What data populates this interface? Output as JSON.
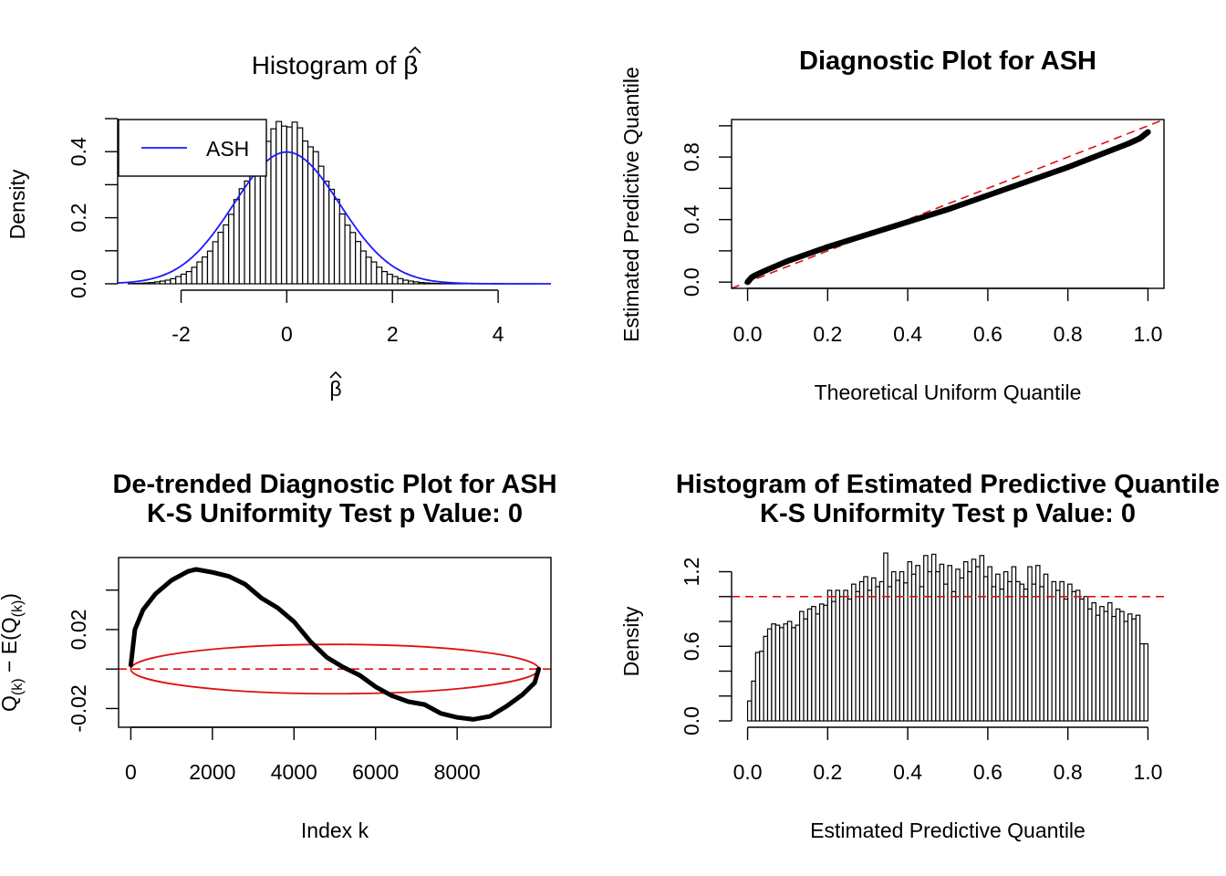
{
  "chart_data": [
    {
      "panel": "top-left",
      "type": "histogram",
      "title": "Histogram of β̂",
      "title_prefix": "Histogram of",
      "title_symbol": "β",
      "xlabel": "β",
      "ylabel": "Density",
      "xlim": [
        -3.2,
        5.0
      ],
      "ylim": [
        0,
        0.5
      ],
      "x_ticks": [
        "-2",
        "0",
        "2",
        "4"
      ],
      "x_tick_values": [
        -2,
        0,
        2,
        4
      ],
      "y_ticks": [
        "0.0",
        "0.2",
        "0.4"
      ],
      "y_tick_values": [
        0,
        0.2,
        0.4
      ],
      "bin_start": -3.0,
      "bin_width": 0.1,
      "curve": {
        "name": "ASH",
        "color": "#1a1aff",
        "mean": 0,
        "sd": 1
      },
      "legend": {
        "position": "top-left",
        "entries": [
          "ASH"
        ]
      }
    },
    {
      "panel": "top-right",
      "type": "scatter",
      "title": "Diagnostic Plot for ASH",
      "xlabel": "Theoretical Uniform Quantile",
      "ylabel": "Estimated Predictive Quantile",
      "xlim": [
        -0.04,
        1.04
      ],
      "ylim": [
        -0.04,
        1.04
      ],
      "x_ticks": [
        "0.0",
        "0.2",
        "0.4",
        "0.6",
        "0.8",
        "1.0"
      ],
      "x_tick_values": [
        0,
        0.2,
        0.4,
        0.6,
        0.8,
        1.0
      ],
      "y_ticks": [
        "0.0",
        "0.4",
        "0.8"
      ],
      "y_tick_values": [
        0,
        0.4,
        0.8
      ],
      "points": [
        [
          0.0,
          0.0
        ],
        [
          0.01,
          0.03
        ],
        [
          0.02,
          0.045
        ],
        [
          0.05,
          0.08
        ],
        [
          0.1,
          0.135
        ],
        [
          0.15,
          0.18
        ],
        [
          0.2,
          0.225
        ],
        [
          0.25,
          0.265
        ],
        [
          0.3,
          0.305
        ],
        [
          0.35,
          0.345
        ],
        [
          0.4,
          0.385
        ],
        [
          0.45,
          0.425
        ],
        [
          0.5,
          0.465
        ],
        [
          0.55,
          0.51
        ],
        [
          0.6,
          0.555
        ],
        [
          0.65,
          0.6
        ],
        [
          0.7,
          0.645
        ],
        [
          0.75,
          0.69
        ],
        [
          0.8,
          0.735
        ],
        [
          0.85,
          0.785
        ],
        [
          0.9,
          0.835
        ],
        [
          0.95,
          0.885
        ],
        [
          0.98,
          0.92
        ],
        [
          1.0,
          0.96
        ]
      ],
      "reference_line": {
        "intercept": 0,
        "slope": 1,
        "color": "#e01010",
        "style": "dashed"
      }
    },
    {
      "panel": "bottom-left",
      "type": "line",
      "title_lines": [
        "De-trended Diagnostic Plot for ASH",
        "K-S Uniformity Test p Value: 0"
      ],
      "xlabel": "Index k",
      "ylabel": "Q(k) − E(Q(k))",
      "ylabel_parts": {
        "q": "Q",
        "sub1": "(k)",
        "mid": " − E(Q",
        "sub2": "(k)",
        "end": ")"
      },
      "xlim": [
        -300,
        10300
      ],
      "ylim": [
        -0.0295,
        0.0565
      ],
      "x_ticks": [
        "0",
        "2000",
        "4000",
        "6000",
        "8000"
      ],
      "x_tick_values": [
        0,
        2000,
        4000,
        6000,
        8000
      ],
      "y_ticks": [
        "-0.02",
        "0.02"
      ],
      "y_tick_values": [
        -0.02,
        0.02
      ],
      "y_minor_tick_values": [
        -0.02,
        0.0,
        0.02,
        0.04
      ],
      "points": [
        [
          0,
          0.002
        ],
        [
          100,
          0.02
        ],
        [
          300,
          0.03
        ],
        [
          600,
          0.038
        ],
        [
          1000,
          0.045
        ],
        [
          1400,
          0.0495
        ],
        [
          1600,
          0.0505
        ],
        [
          2000,
          0.049
        ],
        [
          2400,
          0.047
        ],
        [
          2800,
          0.043
        ],
        [
          3200,
          0.036
        ],
        [
          3600,
          0.031
        ],
        [
          4000,
          0.024
        ],
        [
          4400,
          0.014
        ],
        [
          4800,
          0.006
        ],
        [
          5200,
          0.001
        ],
        [
          5600,
          -0.003
        ],
        [
          6000,
          -0.009
        ],
        [
          6400,
          -0.0135
        ],
        [
          6800,
          -0.0165
        ],
        [
          7200,
          -0.018
        ],
        [
          7600,
          -0.0225
        ],
        [
          8000,
          -0.0245
        ],
        [
          8400,
          -0.0255
        ],
        [
          8800,
          -0.024
        ],
        [
          9200,
          -0.019
        ],
        [
          9600,
          -0.013
        ],
        [
          9900,
          -0.007
        ],
        [
          10000,
          0.0
        ]
      ],
      "ellipse": {
        "color": "#e01010",
        "center_x": 5000,
        "center_y": 0.0,
        "radius_x": 5000,
        "radius_y": 0.0125
      },
      "reference_line": {
        "y": 0,
        "color": "#e01010",
        "style": "dashed"
      }
    },
    {
      "panel": "bottom-right",
      "type": "histogram",
      "title_lines": [
        "Histogram of Estimated Predictive Quantile",
        "K-S Uniformity Test p Value: 0"
      ],
      "xlabel": "Estimated Predictive Quantile",
      "ylabel": "Density",
      "xlim": [
        -0.04,
        1.04
      ],
      "ylim": [
        0,
        1.38
      ],
      "x_ticks": [
        "0.0",
        "0.2",
        "0.4",
        "0.6",
        "0.8",
        "1.0"
      ],
      "x_tick_values": [
        0,
        0.2,
        0.4,
        0.6,
        0.8,
        1.0
      ],
      "y_ticks": [
        "0.0",
        "0.6",
        "1.2"
      ],
      "y_tick_values": [
        0,
        0.6,
        1.2
      ],
      "bin_width": 0.01,
      "values": [
        0.16,
        0.32,
        0.55,
        0.56,
        0.68,
        0.74,
        0.78,
        0.77,
        0.75,
        0.78,
        0.8,
        0.75,
        0.77,
        0.88,
        0.82,
        0.9,
        0.92,
        0.86,
        0.94,
        0.93,
        1.05,
        0.96,
        1.05,
        1.0,
        1.05,
        0.98,
        1.1,
        1.04,
        1.12,
        1.16,
        1.05,
        1.15,
        1.08,
        1.12,
        1.35,
        1.08,
        1.2,
        1.13,
        1.2,
        1.11,
        1.28,
        1.18,
        1.25,
        1.08,
        1.33,
        1.2,
        1.34,
        1.2,
        1.26,
        1.1,
        1.25,
        1.04,
        1.22,
        1.15,
        1.28,
        1.2,
        1.3,
        1.24,
        1.33,
        1.16,
        1.24,
        1.08,
        1.18,
        1.06,
        1.2,
        1.12,
        1.24,
        1.12,
        1.1,
        1.06,
        1.24,
        1.1,
        1.25,
        1.08,
        1.18,
        1.0,
        1.12,
        1.05,
        1.12,
        0.98,
        1.1,
        1.04,
        1.05,
        0.98,
        1.0,
        0.9,
        0.95,
        0.85,
        0.92,
        0.88,
        0.95,
        0.84,
        0.9,
        0.88,
        0.8,
        0.86,
        0.82,
        0.85,
        0.62,
        0.62
      ],
      "reference_line": {
        "y": 1,
        "color": "#e01010",
        "style": "dashed"
      }
    }
  ]
}
